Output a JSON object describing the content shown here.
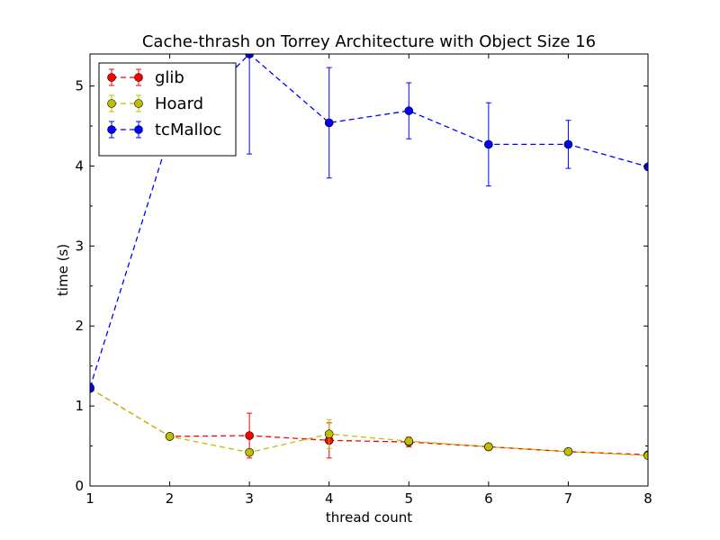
{
  "chart_data": {
    "type": "line",
    "title": "Cache-thrash on Torrey Architecture with Object Size 16",
    "xlabel": "thread count",
    "ylabel": "time (s)",
    "xlim": [
      1,
      8
    ],
    "ylim": [
      0,
      5.4
    ],
    "x_ticks": [
      1,
      2,
      3,
      4,
      5,
      6,
      7,
      8
    ],
    "y_ticks": [
      0,
      1,
      2,
      3,
      4,
      5
    ],
    "grid": false,
    "legend_position": "top-left",
    "x": [
      1,
      2,
      3,
      4,
      5,
      6,
      7,
      8
    ],
    "series": [
      {
        "name": "glib",
        "color": "#ff0000",
        "values": [
          1.22,
          0.62,
          0.63,
          0.57,
          0.55,
          0.49,
          0.43,
          0.39
        ],
        "errors": [
          0.02,
          0.02,
          0.28,
          0.22,
          0.06,
          0.03,
          0.02,
          0.02
        ]
      },
      {
        "name": "Hoard",
        "color": "#bfbf00",
        "values": [
          1.22,
          0.62,
          0.42,
          0.65,
          0.56,
          0.49,
          0.43,
          0.38
        ],
        "errors": [
          0.02,
          0.02,
          0.04,
          0.18,
          0.04,
          0.04,
          0.02,
          0.02
        ]
      },
      {
        "name": "tcMalloc",
        "color": "#0000ff",
        "values": [
          1.23,
          4.4,
          5.4,
          4.54,
          4.69,
          4.27,
          4.27,
          3.99
        ],
        "errors": [
          0.05,
          0.02,
          1.25,
          0.69,
          0.35,
          0.52,
          0.3,
          0.02
        ]
      }
    ]
  }
}
